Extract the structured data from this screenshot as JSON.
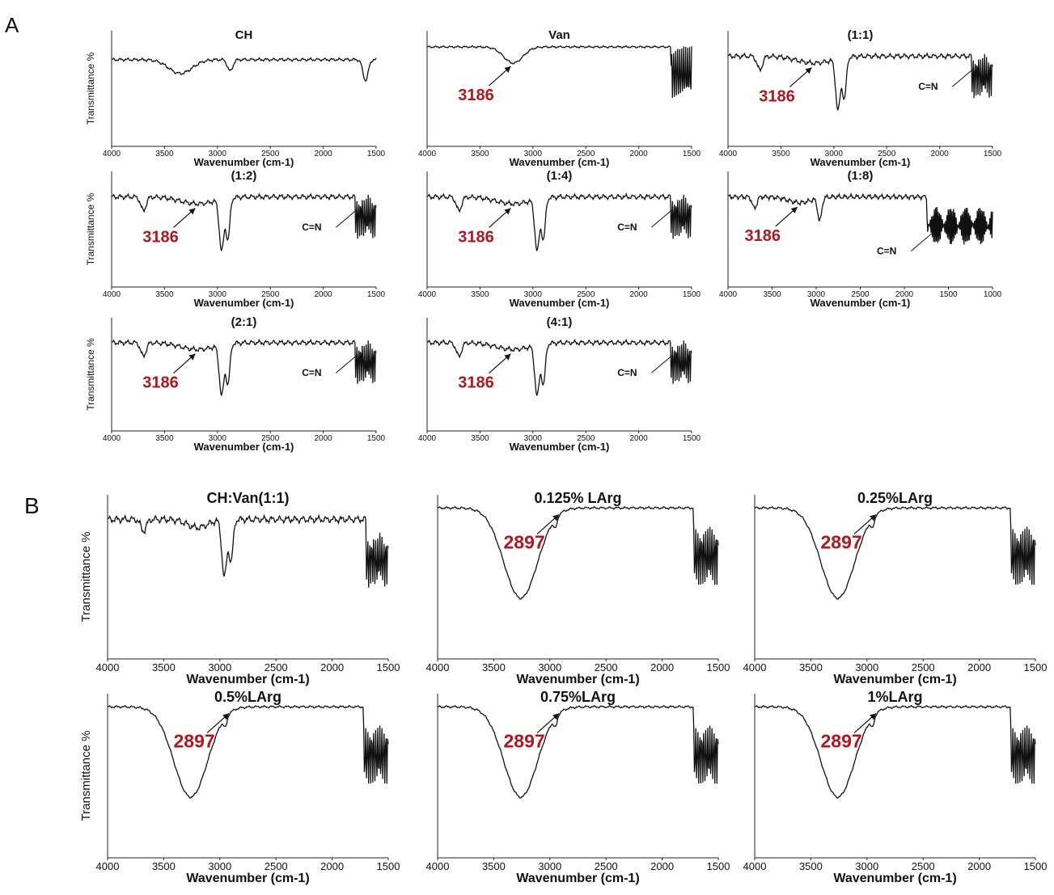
{
  "figure": {
    "panel_labels": [
      "A",
      "B"
    ]
  },
  "chart_data": [
    {
      "type": "line",
      "panel": "A",
      "title": "CH",
      "xlabel": "Wavenumber (cm-1)",
      "ylabel": "Transmittance %",
      "x_ticks": [
        4000,
        3500,
        3000,
        2500,
        2000,
        1500
      ],
      "xlim": [
        4000,
        1500
      ],
      "y_values_shown": false,
      "annotations": [],
      "profile": "ch"
    },
    {
      "type": "line",
      "panel": "A",
      "title": "Van",
      "xlabel": "Wavenumber (cm-1)",
      "ylabel": "",
      "x_ticks": [
        4000,
        3500,
        3000,
        2500,
        2000,
        1500
      ],
      "xlim": [
        4000,
        1500
      ],
      "y_values_shown": false,
      "annotations": [
        {
          "text": "3186",
          "x": 3186,
          "arrow": true
        }
      ],
      "profile": "van"
    },
    {
      "type": "line",
      "panel": "A",
      "title": "(1:1)",
      "xlabel": "Wavenumber (cm-1)",
      "ylabel": "",
      "x_ticks": [
        4000,
        3500,
        3000,
        2500,
        2000,
        1500
      ],
      "xlim": [
        4000,
        1500
      ],
      "y_values_shown": false,
      "annotations": [
        {
          "text": "3186",
          "x": 3186,
          "arrow": true
        },
        {
          "text": "C=N",
          "x": 1650,
          "arrow": true
        }
      ],
      "profile": "mixA"
    },
    {
      "type": "line",
      "panel": "A",
      "title": "(1:2)",
      "xlabel": "Wavenumber (cm-1)",
      "ylabel": "Transmittance %",
      "x_ticks": [
        4000,
        3500,
        3000,
        2500,
        2000,
        1500
      ],
      "xlim": [
        4000,
        1500
      ],
      "y_values_shown": false,
      "annotations": [
        {
          "text": "3186",
          "x": 3186,
          "arrow": true
        },
        {
          "text": "C=N",
          "x": 1650,
          "arrow": true
        }
      ],
      "profile": "mixA"
    },
    {
      "type": "line",
      "panel": "A",
      "title": "(1:4)",
      "xlabel": "Wavenumber (cm-1)",
      "ylabel": "",
      "x_ticks": [
        4000,
        3500,
        3000,
        2500,
        2000,
        1500
      ],
      "xlim": [
        4000,
        1500
      ],
      "y_values_shown": false,
      "annotations": [
        {
          "text": "3186",
          "x": 3186,
          "arrow": true
        },
        {
          "text": "C=N",
          "x": 1650,
          "arrow": true
        }
      ],
      "profile": "mixA"
    },
    {
      "type": "line",
      "panel": "A",
      "title": "(1:8)",
      "xlabel": "Wavenumber (cm-1)",
      "ylabel": "",
      "x_ticks": [
        4000,
        3500,
        3000,
        2500,
        2000,
        1500,
        1000
      ],
      "xlim": [
        4000,
        1000
      ],
      "y_values_shown": false,
      "annotations": [
        {
          "text": "3186",
          "x": 3186,
          "arrow": true
        },
        {
          "text": "C=N",
          "x": 1650,
          "arrow": true
        }
      ],
      "profile": "mix18"
    },
    {
      "type": "line",
      "panel": "A",
      "title": "(2:1)",
      "xlabel": "Wavenumber (cm-1)",
      "ylabel": "Transmittance %",
      "x_ticks": [
        4000,
        3500,
        3000,
        2500,
        2000,
        1500
      ],
      "xlim": [
        4000,
        1500
      ],
      "y_values_shown": false,
      "annotations": [
        {
          "text": "3186",
          "x": 3186,
          "arrow": true
        },
        {
          "text": "C=N",
          "x": 1650,
          "arrow": true
        }
      ],
      "profile": "mixA"
    },
    {
      "type": "line",
      "panel": "A",
      "title": "(4:1)",
      "xlabel": "Wavenumber (cm-1)",
      "ylabel": "",
      "x_ticks": [
        4000,
        3500,
        3000,
        2500,
        2000,
        1500
      ],
      "xlim": [
        4000,
        1500
      ],
      "y_values_shown": false,
      "annotations": [
        {
          "text": "3186",
          "x": 3186,
          "arrow": true
        },
        {
          "text": "C=N",
          "x": 1650,
          "arrow": true
        }
      ],
      "profile": "mixA"
    },
    {
      "type": "line",
      "panel": "B",
      "title": "CH:Van(1:1)",
      "xlabel": "Wavenumber (cm-1)",
      "ylabel": "Transmittance %",
      "x_ticks": [
        4000,
        3500,
        3000,
        2500,
        2000,
        1500
      ],
      "xlim": [
        4000,
        1500
      ],
      "y_values_shown": false,
      "annotations": [],
      "profile": "mixB"
    },
    {
      "type": "line",
      "panel": "B",
      "title": "0.125% LArg",
      "xlabel": "Wavenumber (cm-1)",
      "ylabel": "",
      "x_ticks": [
        4000,
        3500,
        3000,
        2500,
        2000,
        1500
      ],
      "xlim": [
        4000,
        1500
      ],
      "y_values_shown": false,
      "annotations": [
        {
          "text": "2897",
          "x": 2897,
          "arrow": true
        }
      ],
      "profile": "larg"
    },
    {
      "type": "line",
      "panel": "B",
      "title": "0.25%LArg",
      "xlabel": "Wavenumber (cm-1)",
      "ylabel": "",
      "x_ticks": [
        4000,
        3500,
        3000,
        2500,
        2000,
        1500
      ],
      "xlim": [
        4000,
        1500
      ],
      "y_values_shown": false,
      "annotations": [
        {
          "text": "2897",
          "x": 2897,
          "arrow": true
        }
      ],
      "profile": "larg"
    },
    {
      "type": "line",
      "panel": "B",
      "title": "0.5%LArg",
      "xlabel": "Wavenumber (cm-1)",
      "ylabel": "Transmittance %",
      "x_ticks": [
        4000,
        3500,
        3000,
        2500,
        2000,
        1500
      ],
      "xlim": [
        4000,
        1500
      ],
      "y_values_shown": false,
      "annotations": [
        {
          "text": "2897",
          "x": 2897,
          "arrow": true
        }
      ],
      "profile": "larg"
    },
    {
      "type": "line",
      "panel": "B",
      "title": "0.75%LArg",
      "xlabel": "Wavenumber (cm-1)",
      "ylabel": "",
      "x_ticks": [
        4000,
        3500,
        3000,
        2500,
        2000,
        1500
      ],
      "xlim": [
        4000,
        1500
      ],
      "y_values_shown": false,
      "annotations": [
        {
          "text": "2897",
          "x": 2897,
          "arrow": true
        }
      ],
      "profile": "larg"
    },
    {
      "type": "line",
      "panel": "B",
      "title": "1%LArg",
      "xlabel": "Wavenumber (cm-1)",
      "ylabel": "",
      "x_ticks": [
        4000,
        3500,
        3000,
        2500,
        2000,
        1500
      ],
      "xlim": [
        4000,
        1500
      ],
      "y_values_shown": false,
      "annotations": [
        {
          "text": "2897",
          "x": 2897,
          "arrow": true
        }
      ],
      "profile": "larg"
    }
  ],
  "colors": {
    "line": "#111111",
    "axis": "#222222",
    "peak_label": "#b0171f",
    "background": "#ffffff"
  }
}
